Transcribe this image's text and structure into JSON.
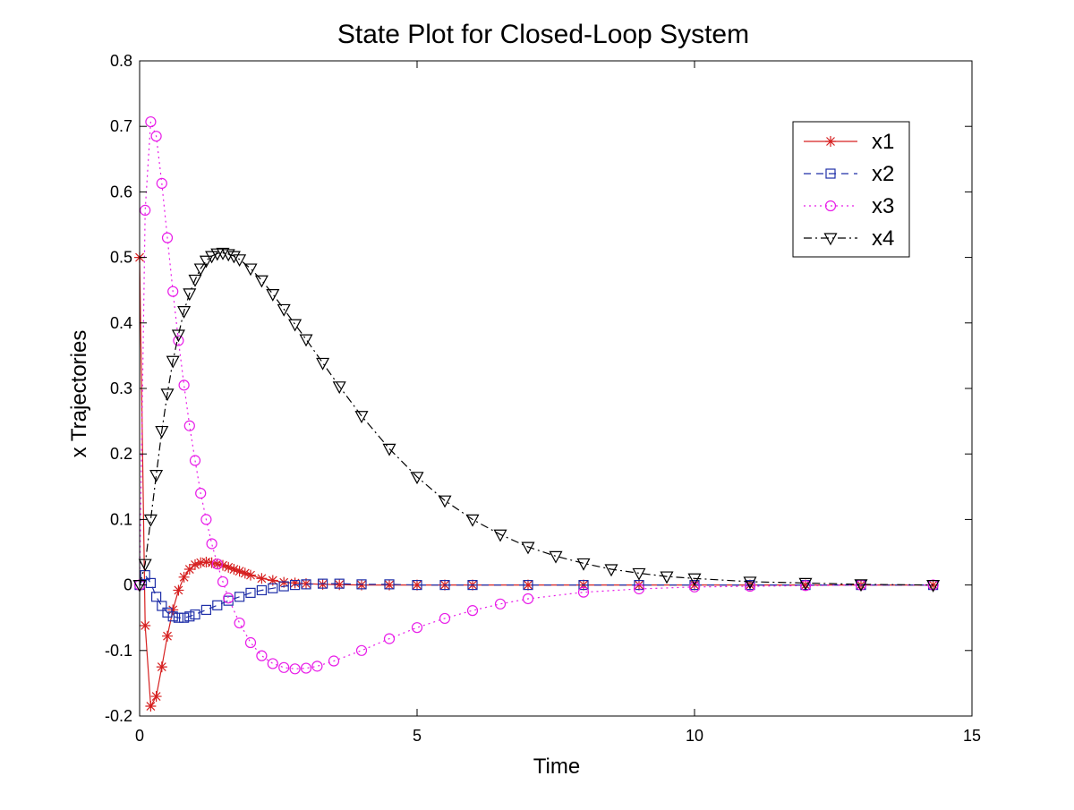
{
  "chart_data": {
    "type": "line",
    "title": "State Plot for Closed-Loop System",
    "xlabel": "Time",
    "ylabel": "x Trajectories",
    "xlim": [
      0,
      15
    ],
    "ylim": [
      -0.2,
      0.8
    ],
    "xticks": [
      0,
      5,
      10,
      15
    ],
    "xtick_labels": [
      "0",
      "5",
      "10",
      "15"
    ],
    "yticks": [
      -0.2,
      -0.1,
      0,
      0.1,
      0.2,
      0.3,
      0.4,
      0.5,
      0.6,
      0.7,
      0.8
    ],
    "ytick_labels": [
      "-0.2",
      "-0.1",
      "0",
      "0.1",
      "0.2",
      "0.3",
      "0.4",
      "0.5",
      "0.6",
      "0.7",
      "0.8"
    ],
    "grid": false,
    "legend_position": "top-right",
    "series": [
      {
        "name": "x1",
        "color": "#d62020",
        "line_style": "solid",
        "marker": "asterisk",
        "x": [
          0,
          0.1,
          0.2,
          0.3,
          0.4,
          0.5,
          0.6,
          0.7,
          0.8,
          0.9,
          1.0,
          1.1,
          1.2,
          1.3,
          1.4,
          1.5,
          1.6,
          1.7,
          1.8,
          1.9,
          2.0,
          2.2,
          2.4,
          2.6,
          2.8,
          3.0,
          3.3,
          3.6,
          4.0,
          4.5,
          5.0,
          5.5,
          6.0,
          7.0,
          8.0,
          9.0,
          10.0,
          11.0,
          12.0,
          13.0,
          14.3
        ],
        "y": [
          0.5,
          -0.062,
          -0.185,
          -0.17,
          -0.125,
          -0.078,
          -0.038,
          -0.008,
          0.012,
          0.024,
          0.031,
          0.034,
          0.035,
          0.034,
          0.032,
          0.03,
          0.027,
          0.024,
          0.021,
          0.018,
          0.015,
          0.01,
          0.007,
          0.004,
          0.003,
          0.002,
          0.001,
          0.0005,
          0,
          0,
          0,
          0,
          0,
          0,
          0,
          0,
          0,
          0,
          0,
          0,
          0
        ]
      },
      {
        "name": "x2",
        "color": "#1f2fa8",
        "line_style": "dashed",
        "marker": "square",
        "x": [
          0,
          0.1,
          0.2,
          0.3,
          0.4,
          0.5,
          0.6,
          0.7,
          0.8,
          0.9,
          1.0,
          1.2,
          1.4,
          1.6,
          1.8,
          2.0,
          2.2,
          2.4,
          2.6,
          2.8,
          3.0,
          3.3,
          3.6,
          4.0,
          4.5,
          5.0,
          5.5,
          6.0,
          7.0,
          8.0,
          9.0,
          10.0,
          11.0,
          12.0,
          13.0,
          14.3
        ],
        "y": [
          0,
          0.015,
          0.003,
          -0.018,
          -0.032,
          -0.042,
          -0.048,
          -0.05,
          -0.05,
          -0.048,
          -0.045,
          -0.038,
          -0.031,
          -0.024,
          -0.018,
          -0.012,
          -0.008,
          -0.005,
          -0.002,
          0,
          0.001,
          0.002,
          0.002,
          0.001,
          0.001,
          0,
          0,
          0,
          0,
          0,
          0,
          0,
          0,
          0,
          0,
          0
        ]
      },
      {
        "name": "x3",
        "color": "#e81ce8",
        "line_style": "dotted",
        "marker": "circle",
        "x": [
          0,
          0.1,
          0.2,
          0.3,
          0.4,
          0.5,
          0.6,
          0.7,
          0.8,
          0.9,
          1.0,
          1.1,
          1.2,
          1.3,
          1.4,
          1.5,
          1.6,
          1.8,
          2.0,
          2.2,
          2.4,
          2.6,
          2.8,
          3.0,
          3.2,
          3.5,
          4.0,
          4.5,
          5.0,
          5.5,
          6.0,
          6.5,
          7.0,
          8.0,
          9.0,
          10.0,
          11.0,
          12.0,
          13.0,
          14.3
        ],
        "y": [
          0,
          0.572,
          0.707,
          0.685,
          0.613,
          0.53,
          0.448,
          0.373,
          0.305,
          0.243,
          0.19,
          0.14,
          0.1,
          0.063,
          0.032,
          0.005,
          -0.02,
          -0.058,
          -0.088,
          -0.108,
          -0.12,
          -0.126,
          -0.128,
          -0.127,
          -0.124,
          -0.116,
          -0.1,
          -0.082,
          -0.065,
          -0.051,
          -0.039,
          -0.029,
          -0.021,
          -0.011,
          -0.006,
          -0.003,
          -0.002,
          -0.001,
          0,
          0
        ]
      },
      {
        "name": "x4",
        "color": "#000000",
        "line_style": "dashdot",
        "marker": "triangle-down",
        "x": [
          0,
          0.1,
          0.2,
          0.3,
          0.4,
          0.5,
          0.6,
          0.7,
          0.8,
          0.9,
          1.0,
          1.1,
          1.2,
          1.3,
          1.4,
          1.5,
          1.6,
          1.7,
          1.8,
          2.0,
          2.2,
          2.4,
          2.6,
          2.8,
          3.0,
          3.3,
          3.6,
          4.0,
          4.5,
          5.0,
          5.5,
          6.0,
          6.5,
          7.0,
          7.5,
          8.0,
          8.5,
          9.0,
          9.5,
          10.0,
          11.0,
          12.0,
          13.0,
          14.3
        ],
        "y": [
          0,
          0.032,
          0.1,
          0.168,
          0.235,
          0.292,
          0.342,
          0.382,
          0.418,
          0.445,
          0.466,
          0.483,
          0.495,
          0.502,
          0.506,
          0.507,
          0.505,
          0.502,
          0.497,
          0.483,
          0.465,
          0.444,
          0.421,
          0.398,
          0.375,
          0.339,
          0.303,
          0.258,
          0.208,
          0.165,
          0.129,
          0.1,
          0.077,
          0.058,
          0.044,
          0.033,
          0.024,
          0.018,
          0.013,
          0.01,
          0.005,
          0.003,
          0.001,
          0
        ]
      }
    ]
  }
}
